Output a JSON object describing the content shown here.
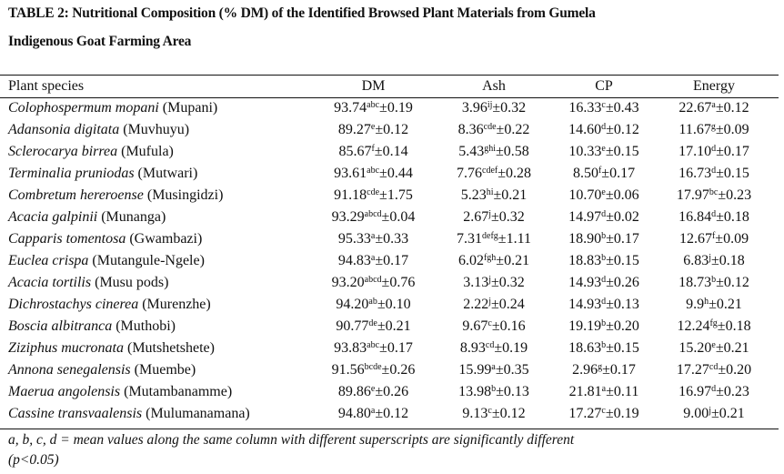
{
  "title": {
    "line1": "TABLE 2: Nutritional Composition (% DM) of the Identified Browsed Plant Materials from Gumela",
    "line2": "Indigenous Goat Farming Area"
  },
  "table": {
    "headers": [
      "Plant species",
      "DM",
      "Ash",
      "CP",
      "Energy"
    ],
    "rows": [
      {
        "sci": "Colophospermum mopani",
        "local": "(Mupani)",
        "dm": {
          "v": "93.74",
          "s": "abc",
          "e": "±0.19"
        },
        "ash": {
          "v": "3.96",
          "s": "ij",
          "e": "±0.32"
        },
        "cp": {
          "v": "16.33",
          "s": "c",
          "e": "±0.43"
        },
        "en": {
          "v": "22.67",
          "s": "a",
          "e": "±0.12"
        }
      },
      {
        "sci": "Adansonia digitata",
        "local": "(Muvhuyu)",
        "dm": {
          "v": "89.27",
          "s": "e",
          "e": "±0.12"
        },
        "ash": {
          "v": "8.36",
          "s": "cde",
          "e": "±0.22"
        },
        "cp": {
          "v": "14.60",
          "s": "d",
          "e": "±0.12"
        },
        "en": {
          "v": "11.67",
          "s": "g",
          "e": "±0.09"
        }
      },
      {
        "sci": "Sclerocarya birrea",
        "local": "(Mufula)",
        "dm": {
          "v": "85.67",
          "s": "f",
          "e": "±0.14"
        },
        "ash": {
          "v": "5.43",
          "s": "ghi",
          "e": "±0.58"
        },
        "cp": {
          "v": "10.33",
          "s": "e",
          "e": "±0.15"
        },
        "en": {
          "v": "17.10",
          "s": "d",
          "e": "±0.17"
        }
      },
      {
        "sci": "Terminalia pruniodas",
        "local": "(Mutwari)",
        "dm": {
          "v": "93.61",
          "s": "abc",
          "e": "±0.44"
        },
        "ash": {
          "v": "7.76",
          "s": "cdef",
          "e": "±0.28"
        },
        "cp": {
          "v": "8.50",
          "s": "f",
          "e": "±0.17"
        },
        "en": {
          "v": "16.73",
          "s": "d",
          "e": "±0.15"
        }
      },
      {
        "sci": "Combretum hereroense",
        "local": "(Musingidzi)",
        "dm": {
          "v": "91.18",
          "s": "cde",
          "e": "±1.75"
        },
        "ash": {
          "v": "5.23",
          "s": "hi",
          "e": "±0.21"
        },
        "cp": {
          "v": "10.70",
          "s": "e",
          "e": "±0.06"
        },
        "en": {
          "v": "17.97",
          "s": "bc",
          "e": "±0.23"
        }
      },
      {
        "sci": "Acacia galpinii",
        "local": "(Munanga)",
        "dm": {
          "v": "93.29",
          "s": "abcd",
          "e": "±0.04"
        },
        "ash": {
          "v": "2.67",
          "s": "j",
          "e": "±0.32"
        },
        "cp": {
          "v": "14.97",
          "s": "d",
          "e": "±0.02"
        },
        "en": {
          "v": "16.84",
          "s": "d",
          "e": "±0.18"
        }
      },
      {
        "sci": "Capparis tomentosa",
        "local": "(Gwambazi)",
        "dm": {
          "v": "95.33",
          "s": "a",
          "e": "±0.33"
        },
        "ash": {
          "v": "7.31",
          "s": "defg",
          "e": "±1.11"
        },
        "cp": {
          "v": "18.90",
          "s": "b",
          "e": "±0.17"
        },
        "en": {
          "v": "12.67",
          "s": "f",
          "e": "±0.09"
        }
      },
      {
        "sci": "Euclea crispa",
        "local": "(Mutangule-Ngele)",
        "dm": {
          "v": "94.83",
          "s": "a",
          "e": "±0.17"
        },
        "ash": {
          "v": "6.02",
          "s": "fgh",
          "e": "±0.21"
        },
        "cp": {
          "v": "18.83",
          "s": "b",
          "e": "±0.15"
        },
        "en": {
          "v": "6.83",
          "s": "j",
          "e": "±0.18"
        }
      },
      {
        "sci": "Acacia tortilis",
        "local": "(Musu pods)",
        "dm": {
          "v": "93.20",
          "s": "abcd",
          "e": "±0.76"
        },
        "ash": {
          "v": "3.13",
          "s": "j",
          "e": "±0.32"
        },
        "cp": {
          "v": "14.93",
          "s": "d",
          "e": "±0.26"
        },
        "en": {
          "v": "18.73",
          "s": "b",
          "e": "±0.12"
        }
      },
      {
        "sci": "Dichrostachys cinerea",
        "local": "(Murenzhe)",
        "dm": {
          "v": "94.20",
          "s": "ab",
          "e": "±0.10"
        },
        "ash": {
          "v": "2.22",
          "s": "j",
          "e": "±0.24"
        },
        "cp": {
          "v": "14.93",
          "s": "d",
          "e": "±0.13"
        },
        "en": {
          "v": "9.9",
          "s": "h",
          "e": "±0.21"
        }
      },
      {
        "sci": "Boscia albitranca",
        "local": "(Muthobi)",
        "dm": {
          "v": "90.77",
          "s": "de",
          "e": "±0.21"
        },
        "ash": {
          "v": "9.67",
          "s": "c",
          "e": "±0.16"
        },
        "cp": {
          "v": "19.19",
          "s": "b",
          "e": "±0.20"
        },
        "en": {
          "v": "12.24",
          "s": "fg",
          "e": "±0.18"
        }
      },
      {
        "sci": "Ziziphus mucronata",
        "local": "(Mutshetshete)",
        "dm": {
          "v": "93.83",
          "s": "abc",
          "e": "±0.17"
        },
        "ash": {
          "v": "8.93",
          "s": "cd",
          "e": "±0.19"
        },
        "cp": {
          "v": "18.63",
          "s": "b",
          "e": "±0.15"
        },
        "en": {
          "v": "15.20",
          "s": "e",
          "e": "±0.21"
        }
      },
      {
        "sci": "Annona senegalensis",
        "local": "(Muembe)",
        "dm": {
          "v": "91.56",
          "s": "bcde",
          "e": "±0.26"
        },
        "ash": {
          "v": "15.99",
          "s": "a",
          "e": "±0.35"
        },
        "cp": {
          "v": "2.96",
          "s": "g",
          "e": "±0.17"
        },
        "en": {
          "v": "17.27",
          "s": "cd",
          "e": "±0.20"
        }
      },
      {
        "sci": "Maerua angolensis",
        "local": "(Mutambanamme)",
        "dm": {
          "v": "89.86",
          "s": "e",
          "e": "±0.26"
        },
        "ash": {
          "v": "13.98",
          "s": "b",
          "e": "±0.13"
        },
        "cp": {
          "v": "21.81",
          "s": "a",
          "e": "±0.11"
        },
        "en": {
          "v": "16.97",
          "s": "d",
          "e": "±0.23"
        }
      },
      {
        "sci": "Cassine transvaalensis",
        "local": "(Mulumanamana)",
        "dm": {
          "v": "94.80",
          "s": "a",
          "e": "±0.12"
        },
        "ash": {
          "v": "9.13",
          "s": "c",
          "e": "±0.12"
        },
        "cp": {
          "v": "17.27",
          "s": "c",
          "e": "±0.19"
        },
        "en": {
          "v": "9.00",
          "s": "j",
          "e": "±0.21"
        }
      }
    ]
  },
  "footnote": {
    "line1": "a, b, c, d = mean values along the same column with different superscripts are significantly different",
    "line2": "(p<0.05)"
  }
}
